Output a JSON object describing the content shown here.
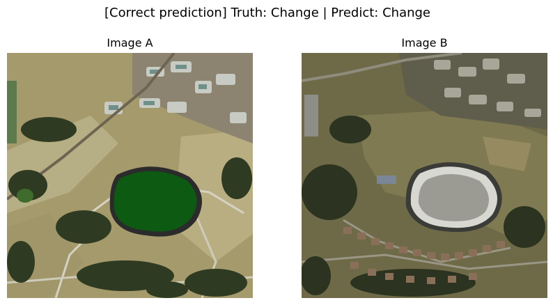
{
  "figure": {
    "suptitle": "[Correct prediction] Truth: Change | Predict: Change"
  },
  "panels": [
    {
      "title": "Image A",
      "scene": "aerial photo with green-filled reservoir"
    },
    {
      "title": "Image B",
      "scene": "aerial photo with drained reservoir and new housing"
    }
  ]
}
